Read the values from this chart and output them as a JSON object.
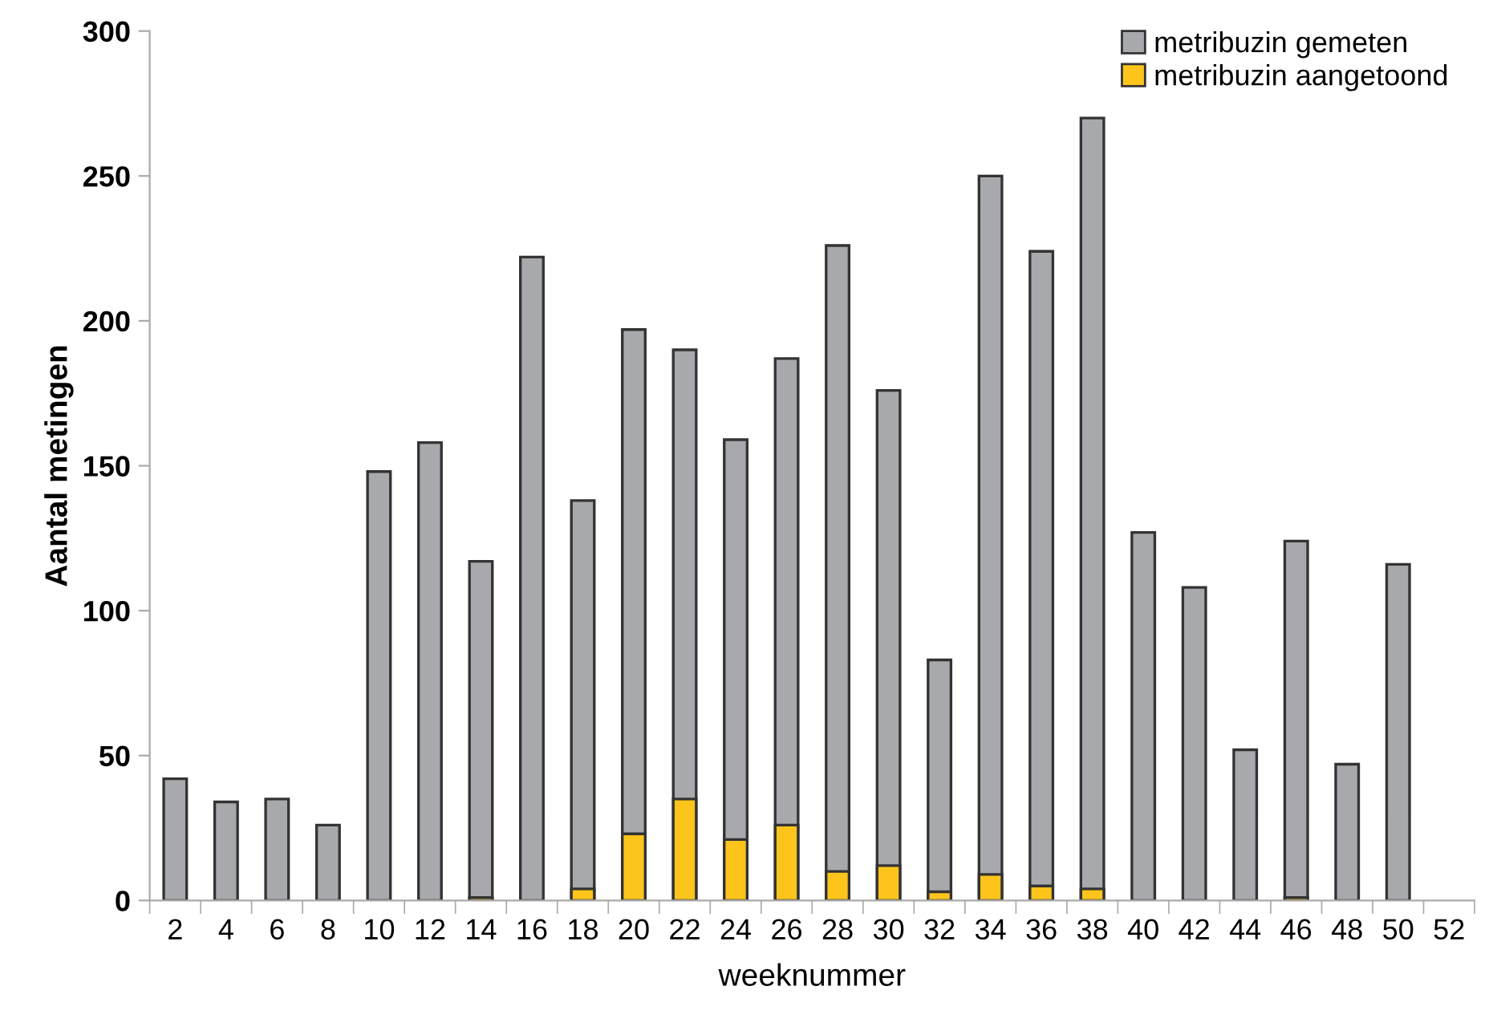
{
  "chart_data": {
    "type": "bar",
    "xlabel": "weeknummer",
    "ylabel": "Aantal metingen",
    "categories": [
      "2",
      "4",
      "6",
      "8",
      "10",
      "12",
      "14",
      "16",
      "18",
      "20",
      "22",
      "24",
      "26",
      "28",
      "30",
      "32",
      "34",
      "36",
      "38",
      "40",
      "42",
      "44",
      "46",
      "48",
      "50",
      "52"
    ],
    "series": [
      {
        "name": "metribuzin gemeten",
        "color": "#a7a9ac",
        "values": [
          42,
          34,
          35,
          26,
          148,
          158,
          117,
          222,
          138,
          197,
          190,
          159,
          187,
          226,
          176,
          83,
          250,
          224,
          270,
          127,
          108,
          52,
          124,
          47,
          116,
          null
        ]
      },
      {
        "name": "metribuzin aangetoond",
        "color": "#fdc41c",
        "values": [
          null,
          null,
          null,
          null,
          null,
          null,
          1,
          null,
          4,
          23,
          35,
          21,
          26,
          10,
          12,
          3,
          9,
          5,
          4,
          null,
          null,
          null,
          1,
          null,
          null,
          null
        ]
      }
    ],
    "ylim": [
      0,
      300
    ],
    "yticks": [
      0,
      50,
      100,
      150,
      200,
      250,
      300
    ],
    "grid": false,
    "legend": "top right"
  }
}
